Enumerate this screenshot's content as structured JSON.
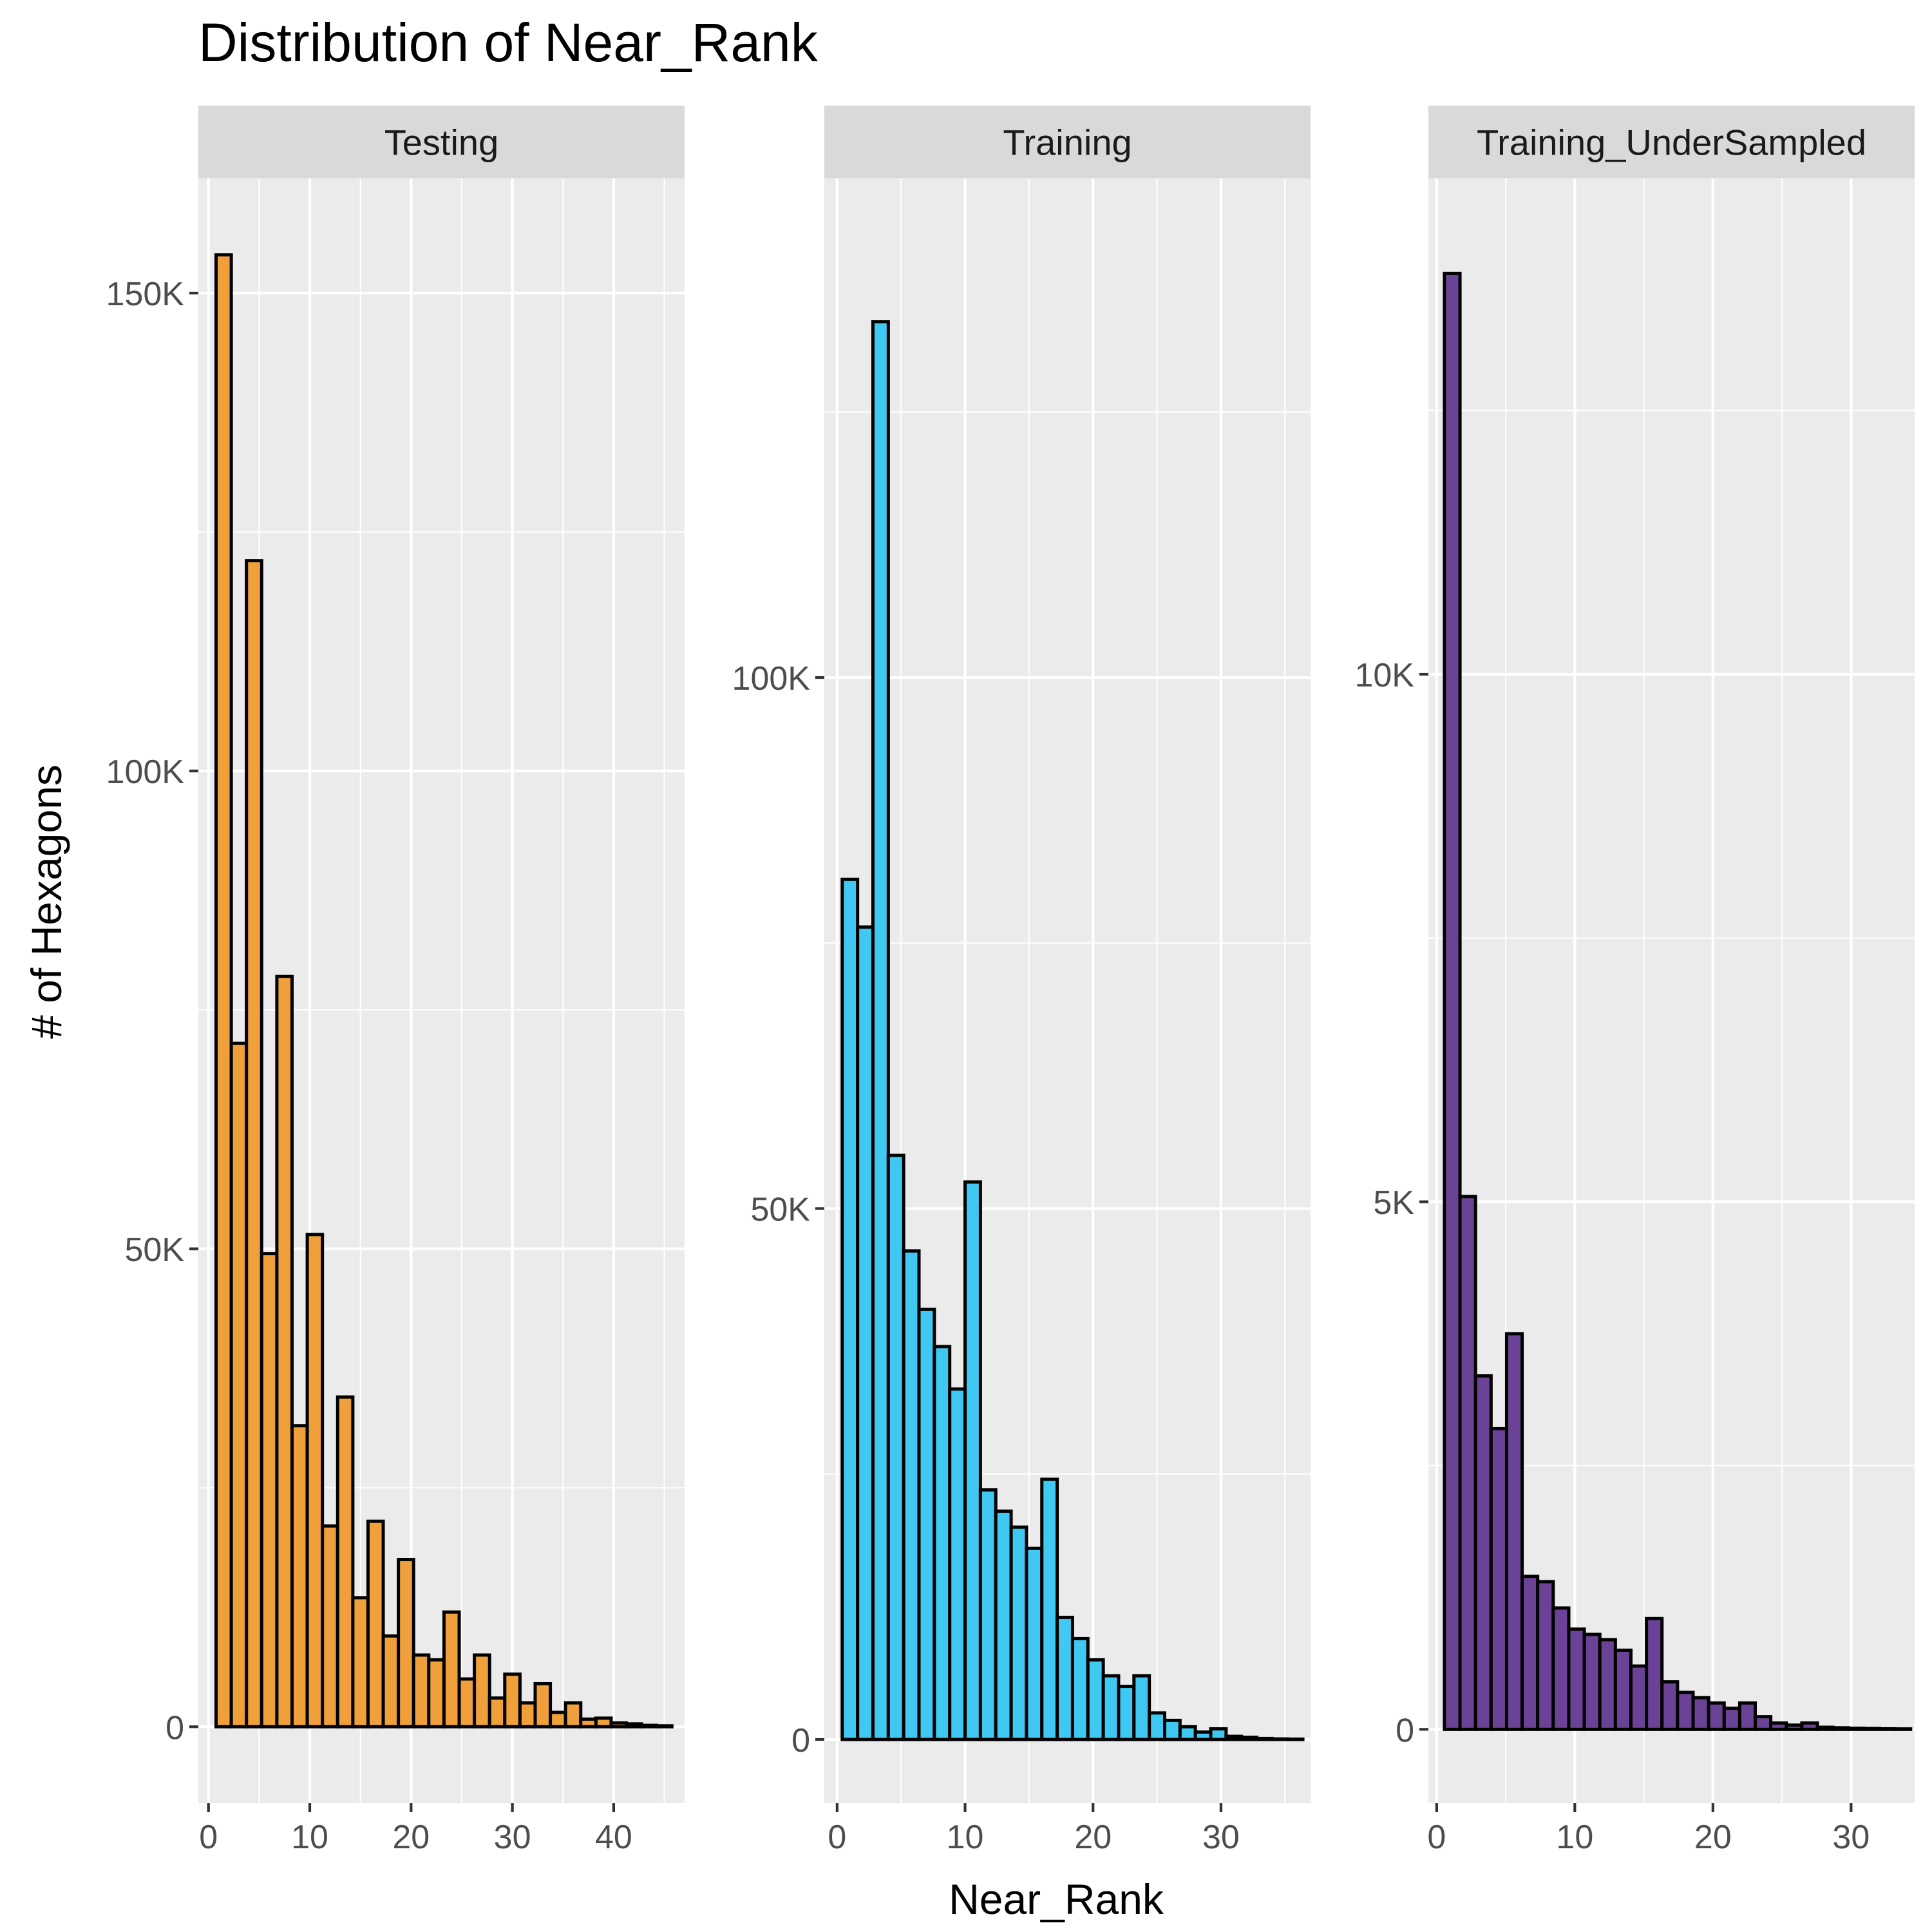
{
  "chart_data": {
    "type": "bar",
    "title": "Distribution of Near_Rank",
    "xlabel": "Near_Rank",
    "ylabel": "# of Hexagons",
    "panels": [
      {
        "name": "Testing",
        "fill": "#F0A03A",
        "xlim": [
          -1,
          47
        ],
        "ylim": [
          -8000,
          162000
        ],
        "xticks": [
          0,
          10,
          20,
          30,
          40
        ],
        "yticks": [
          0,
          50000,
          100000,
          150000
        ],
        "ytick_labels": [
          "0",
          "50K",
          "100K",
          "150K"
        ],
        "bin_width": 1.5,
        "x0": 0.75,
        "values": [
          154000,
          71500,
          122000,
          49500,
          78500,
          31500,
          51500,
          21000,
          34500,
          13500,
          21500,
          9500,
          17500,
          7500,
          7000,
          12000,
          5000,
          7500,
          3000,
          5500,
          2500,
          4500,
          1500,
          2500,
          800,
          900,
          400,
          300,
          150,
          100
        ]
      },
      {
        "name": "Training",
        "fill": "#3EC8F2",
        "xlim": [
          -1,
          37
        ],
        "ylim": [
          -6000,
          147000
        ],
        "xticks": [
          0,
          10,
          20,
          30
        ],
        "yticks": [
          0,
          50000,
          100000
        ],
        "ytick_labels": [
          "0",
          "50K",
          "100K"
        ],
        "bin_width": 1.2,
        "x0": 0.4,
        "values": [
          81000,
          76500,
          133500,
          55000,
          46000,
          40500,
          37000,
          33000,
          52500,
          23500,
          21500,
          20000,
          18000,
          24500,
          11500,
          9500,
          7500,
          6000,
          5000,
          6000,
          2500,
          1800,
          1200,
          700,
          1000,
          300,
          200,
          100,
          50,
          30
        ]
      },
      {
        "name": "Training_UnderSampled",
        "fill": "#6B4396",
        "xlim": [
          -0.6,
          34.6
        ],
        "ylim": [
          -700,
          14700
        ],
        "xticks": [
          0,
          10,
          20,
          30
        ],
        "yticks": [
          0,
          5000,
          10000
        ],
        "ytick_labels": [
          "0",
          "5K",
          "10K"
        ],
        "bin_width": 1.125,
        "x0": 0.5625,
        "values": [
          13800,
          5050,
          3350,
          2850,
          3750,
          1450,
          1400,
          1150,
          950,
          900,
          850,
          750,
          600,
          1050,
          450,
          350,
          300,
          250,
          200,
          250,
          120,
          60,
          40,
          60,
          20,
          15,
          10,
          8,
          5,
          4
        ]
      }
    ],
    "grid": true
  }
}
